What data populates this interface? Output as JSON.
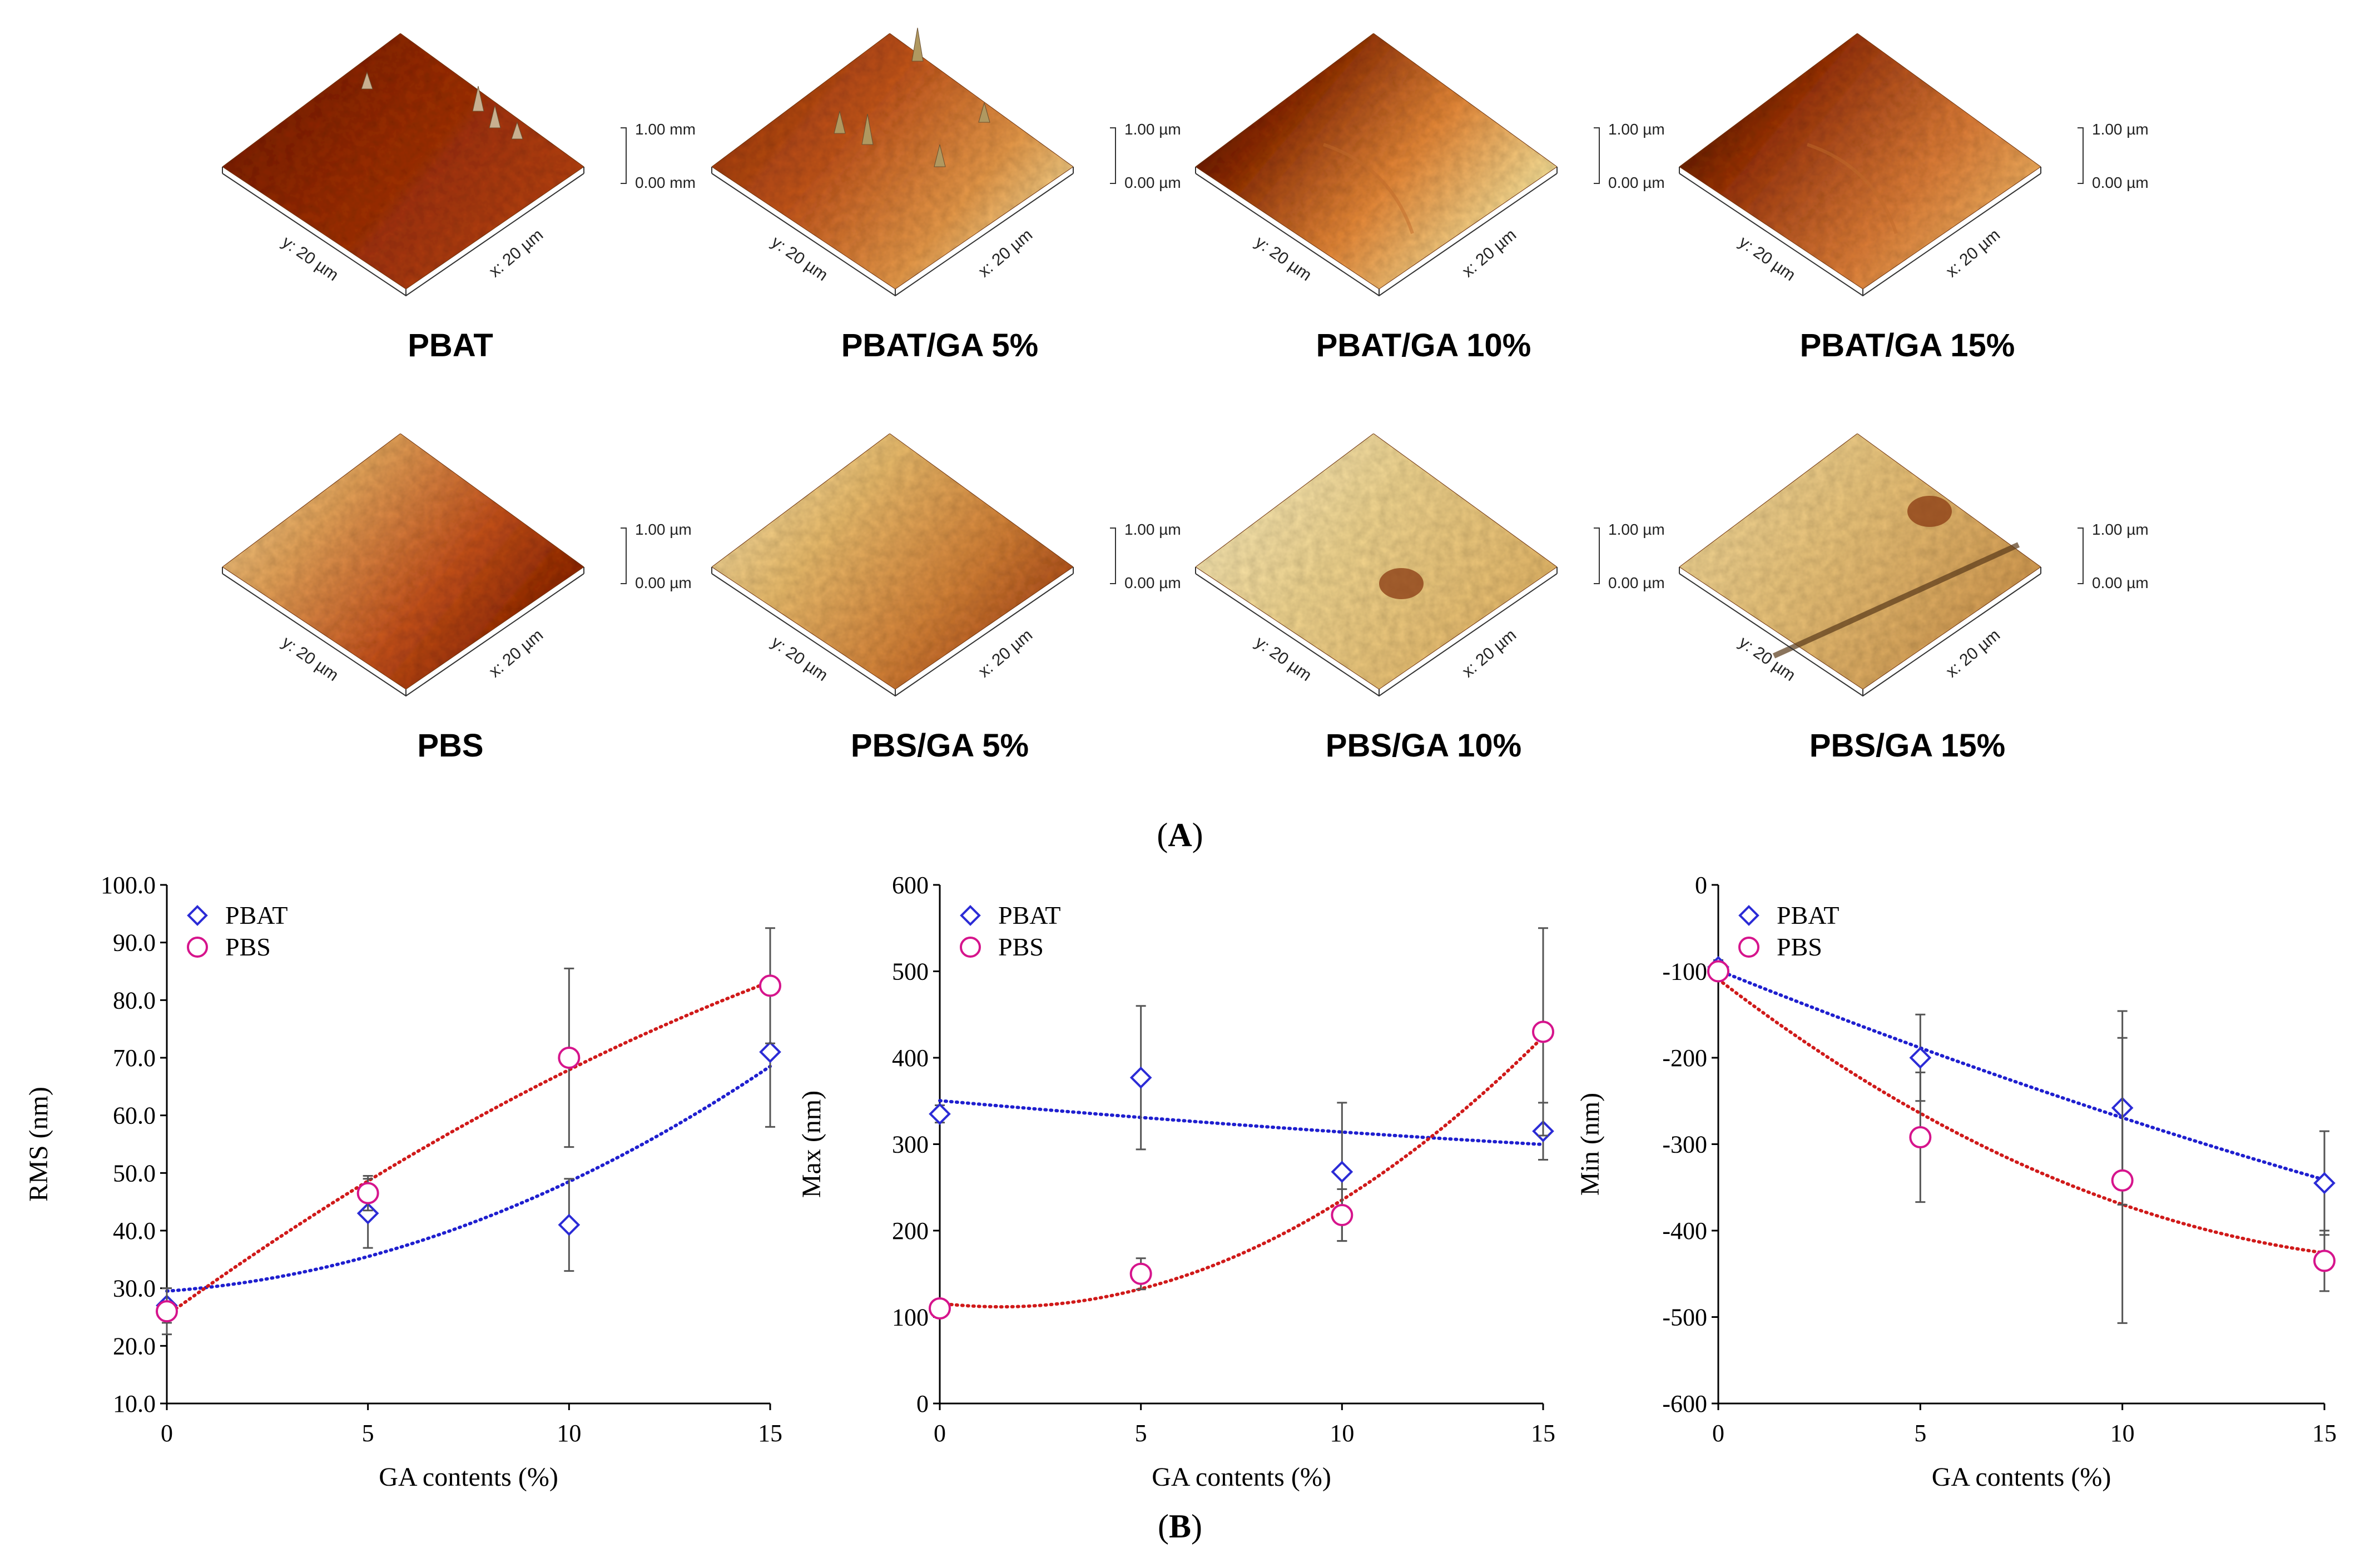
{
  "panel_A": {
    "label_paren_open": "(",
    "label_letter": "A",
    "label_paren_close": ")",
    "samples": [
      {
        "title": "PBAT",
        "scale_top": "1.00 mm",
        "scale_bottom": "0.00 mm",
        "y_axis": "y: 20 µm",
        "x_axis": "x: 20 µm",
        "palette": "dark-red"
      },
      {
        "title": "PBAT/GA 5%",
        "scale_top": "1.00 µm",
        "scale_bottom": "0.00 µm",
        "y_axis": "y: 20 µm",
        "x_axis": "x: 20 µm",
        "palette": "red-orange"
      },
      {
        "title": "PBAT/GA 10%",
        "scale_top": "1.00 µm",
        "scale_bottom": "0.00 µm",
        "y_axis": "y: 20 µm",
        "x_axis": "x: 20 µm",
        "palette": "dark-to-yellow"
      },
      {
        "title": "PBAT/GA 15%",
        "scale_top": "1.00 µm",
        "scale_bottom": "0.00 µm",
        "y_axis": "y: 20 µm",
        "x_axis": "x: 20 µm",
        "palette": "dark-to-orange"
      },
      {
        "title": "PBS",
        "scale_top": "1.00 µm",
        "scale_bottom": "0.00 µm",
        "y_axis": "y: 20 µm",
        "x_axis": "x: 20 µm",
        "palette": "yellow-to-red"
      },
      {
        "title": "PBS/GA 5%",
        "scale_top": "1.00 µm",
        "scale_bottom": "0.00 µm",
        "y_axis": "y: 20 µm",
        "x_axis": "x: 20 µm",
        "palette": "yellow-orange"
      },
      {
        "title": "PBS/GA 10%",
        "scale_top": "1.00 µm",
        "scale_bottom": "0.00 µm",
        "y_axis": "y: 20 µm",
        "x_axis": "x: 20 µm",
        "palette": "pale-yellow"
      },
      {
        "title": "PBS/GA 15%",
        "scale_top": "1.00 µm",
        "scale_bottom": "0.00 µm",
        "y_axis": "y: 20 µm",
        "x_axis": "x: 20 µm",
        "palette": "yellow-groove"
      }
    ]
  },
  "panel_B": {
    "label_paren_open": "(",
    "label_letter": "B",
    "label_paren_close": ")"
  },
  "colors": {
    "pbat": "#2b2bd6",
    "pbs": "#d6148c",
    "pbat_trend": "#1f1fcf",
    "pbs_trend": "#d01a1a",
    "error_bar": "#555555"
  },
  "chart_data": [
    {
      "type": "scatter",
      "title": "",
      "xlabel": "GA contents (%)",
      "ylabel": "RMS (nm)",
      "xlim": [
        0,
        15
      ],
      "ylim": [
        10,
        100
      ],
      "xticks": [
        0,
        5,
        10,
        15
      ],
      "yticks": [
        10,
        20,
        30,
        40,
        50,
        60,
        70,
        80,
        90,
        100
      ],
      "ytick_labels": [
        "10.0",
        "20.0",
        "30.0",
        "40.0",
        "50.0",
        "60.0",
        "70.0",
        "80.0",
        "90.0",
        "100.0"
      ],
      "legend_position": "top-left",
      "series": [
        {
          "name": "PBAT",
          "marker": "diamond",
          "x": [
            0,
            5,
            10,
            15
          ],
          "y": [
            27,
            43,
            41,
            71
          ],
          "err": [
            3,
            6,
            8,
            13
          ],
          "trend": "polynomial"
        },
        {
          "name": "PBS",
          "marker": "circle",
          "x": [
            0,
            5,
            10,
            15
          ],
          "y": [
            26,
            46.5,
            70,
            82.5
          ],
          "err": [
            4,
            3,
            15.5,
            10
          ],
          "trend": "polynomial"
        }
      ]
    },
    {
      "type": "scatter",
      "title": "",
      "xlabel": "GA contents (%)",
      "ylabel": "Max (nm)",
      "xlim": [
        0,
        15
      ],
      "ylim": [
        0,
        600
      ],
      "xticks": [
        0,
        5,
        10,
        15
      ],
      "yticks": [
        0,
        100,
        200,
        300,
        400,
        500,
        600
      ],
      "ytick_labels": [
        "0",
        "100",
        "200",
        "300",
        "400",
        "500",
        "600"
      ],
      "legend_position": "top-left",
      "series": [
        {
          "name": "PBAT",
          "marker": "diamond",
          "x": [
            0,
            5,
            10,
            15
          ],
          "y": [
            335,
            377,
            268,
            315
          ],
          "err": [
            10,
            83,
            80,
            33
          ],
          "trend": "polynomial"
        },
        {
          "name": "PBS",
          "marker": "circle",
          "x": [
            0,
            5,
            10,
            15
          ],
          "y": [
            110,
            150,
            218,
            430
          ],
          "err": [
            8,
            18,
            30,
            120
          ],
          "trend": "polynomial"
        }
      ]
    },
    {
      "type": "scatter",
      "title": "",
      "xlabel": "GA contents (%)",
      "ylabel": "Min (nm)",
      "xlim": [
        0,
        15
      ],
      "ylim": [
        -600,
        0
      ],
      "xticks": [
        0,
        5,
        10,
        15
      ],
      "yticks": [
        -600,
        -500,
        -400,
        -300,
        -200,
        -100,
        0
      ],
      "ytick_labels": [
        "-600",
        "-500",
        "-400",
        "-300",
        "-200",
        "-100",
        "0"
      ],
      "legend_position": "top-left",
      "series": [
        {
          "name": "PBAT",
          "marker": "diamond",
          "x": [
            0,
            5,
            10,
            15
          ],
          "y": [
            -95,
            -200,
            -258,
            -345
          ],
          "err": [
            8,
            50,
            112,
            60
          ],
          "trend": "polynomial"
        },
        {
          "name": "PBS",
          "marker": "circle",
          "x": [
            0,
            5,
            10,
            15
          ],
          "y": [
            -100,
            -292,
            -342,
            -435
          ],
          "err": [
            6,
            75,
            165,
            35
          ],
          "trend": "polynomial"
        }
      ]
    }
  ]
}
